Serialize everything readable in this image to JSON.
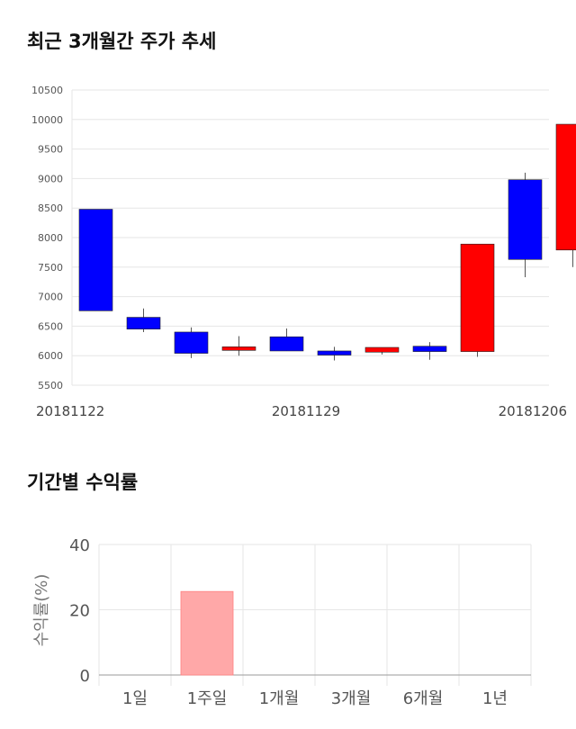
{
  "section1": {
    "title": "최근 3개월간 주가 추세"
  },
  "section2": {
    "title": "기간별 수익률"
  },
  "chart_data": [
    {
      "type": "candlestick",
      "title": "최근 3개월간 주가 추세",
      "ylim": [
        5500,
        10500
      ],
      "yticks": [
        10500,
        10000,
        9500,
        9000,
        8500,
        8000,
        7500,
        7000,
        6500,
        6000,
        5500
      ],
      "xtick_labels": [
        "20181122",
        "20181129",
        "20181206"
      ],
      "grid": true,
      "colors": {
        "up": "#ff0000",
        "down": "#0000ff",
        "wick": "#555555",
        "grid": "#e6e6e6"
      },
      "candles": [
        {
          "open": 8480,
          "close": 6760,
          "high": 8480,
          "low": 6760
        },
        {
          "open": 6650,
          "close": 6450,
          "high": 6800,
          "low": 6400
        },
        {
          "open": 6400,
          "close": 6040,
          "high": 6480,
          "low": 5960
        },
        {
          "open": 6090,
          "close": 6150,
          "high": 6330,
          "low": 6000
        },
        {
          "open": 6320,
          "close": 6080,
          "high": 6460,
          "low": 6080
        },
        {
          "open": 6080,
          "close": 6010,
          "high": 6150,
          "low": 5920
        },
        {
          "open": 6060,
          "close": 6140,
          "high": 6140,
          "low": 6020
        },
        {
          "open": 6160,
          "close": 6070,
          "high": 6230,
          "low": 5930
        },
        {
          "open": 6070,
          "close": 7890,
          "high": 7890,
          "low": 5980
        },
        {
          "open": 8980,
          "close": 7630,
          "high": 9100,
          "low": 7330
        },
        {
          "open": 7790,
          "close": 9920,
          "high": 9920,
          "low": 7500
        }
      ]
    },
    {
      "type": "bar",
      "title": "기간별 수익률",
      "categories": [
        "1일",
        "1주일",
        "1개월",
        "3개월",
        "6개월",
        "1년"
      ],
      "values": [
        null,
        25.6,
        null,
        null,
        null,
        null
      ],
      "ylabel": "수익률(%)",
      "ylim": [
        0,
        40
      ],
      "yticks": [
        40,
        20,
        0
      ],
      "grid": true,
      "colors": {
        "bar": "#ffa8a8",
        "bar_edge": "#ff8080",
        "grid": "#e6e6e6",
        "axis": "#999999"
      }
    }
  ]
}
